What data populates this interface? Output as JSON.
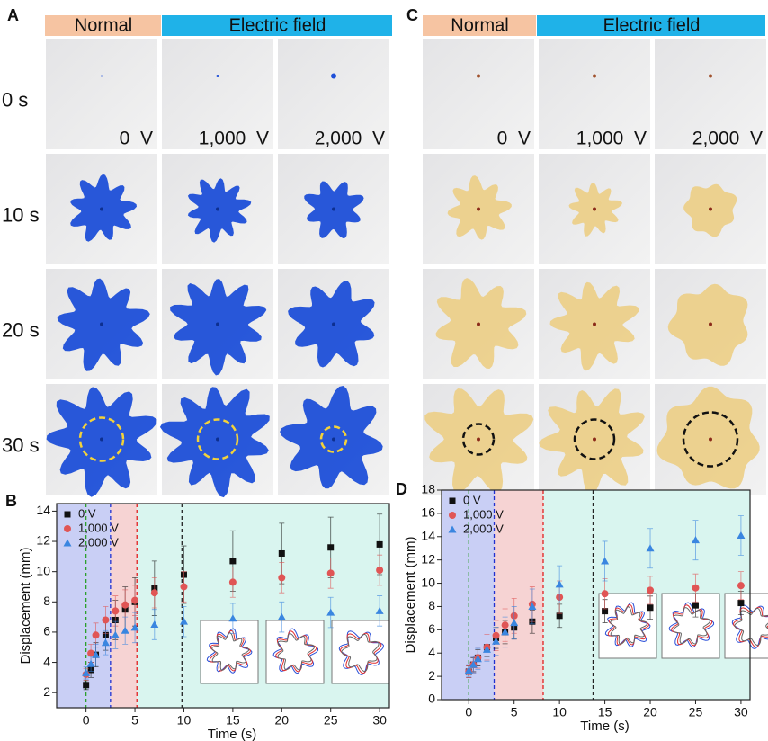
{
  "image_panels": [
    {
      "panel_label": "A",
      "headers": [
        "Normal",
        "Electric field"
      ],
      "times": [
        "0 s",
        "10 s",
        "20 s",
        "30 s"
      ],
      "voltages": [
        "0  V",
        "1,000  V",
        "2,000  V"
      ],
      "color": "#1d4fd8",
      "circle_color": "#f3d23a"
    },
    {
      "panel_label": "C",
      "headers": [
        "Normal",
        "Electric field"
      ],
      "voltages": [
        "0  V",
        "1,000  V",
        "2,000  V"
      ],
      "color": "#ecd08a",
      "circle_color": "#111111"
    }
  ],
  "chart_data": [
    {
      "type": "scatter",
      "panel_label": "B",
      "xlabel": "Time (s)",
      "ylabel": "Displacement (mm)",
      "xlim": [
        -3,
        31
      ],
      "ylim": [
        1,
        14.5
      ],
      "xticks": [
        0,
        5,
        10,
        15,
        20,
        25,
        30
      ],
      "yticks": [
        2,
        4,
        6,
        8,
        10,
        12,
        14
      ],
      "x": [
        0,
        0.5,
        1,
        2,
        3,
        4,
        5,
        7,
        10,
        15,
        20,
        25,
        30
      ],
      "bands": [
        {
          "x0": -3,
          "x1": 2.5,
          "color": "#c9cff5"
        },
        {
          "x0": 2.5,
          "x1": 5.2,
          "color": "#f6d3d3"
        },
        {
          "x0": 5.2,
          "x1": 31,
          "color": "#d9f5ef"
        }
      ],
      "vlines": [
        {
          "x": 0,
          "color": "#2ca02c"
        },
        {
          "x": 2.5,
          "color": "#2030d0"
        },
        {
          "x": 5.2,
          "color": "#e02020"
        },
        {
          "x": 9.8,
          "color": "#222222"
        }
      ],
      "series": [
        {
          "name": "0 V",
          "color": "#111111",
          "marker": "square",
          "values": [
            2.5,
            3.5,
            4.5,
            5.8,
            6.8,
            7.5,
            8,
            8.9,
            9.8,
            10.7,
            11.2,
            11.6,
            11.8
          ],
          "errors": [
            0.3,
            0.5,
            0.8,
            1.0,
            1.3,
            1.5,
            1.6,
            1.8,
            1.9,
            2.0,
            2.0,
            2.0,
            2.0
          ]
        },
        {
          "name": "1,000 V",
          "color": "#e05555",
          "marker": "circle",
          "values": [
            3.2,
            4.6,
            5.8,
            6.8,
            7.4,
            7.8,
            8.1,
            8.6,
            9,
            9.3,
            9.6,
            9.9,
            10.1
          ],
          "errors": [
            0.4,
            0.6,
            0.8,
            0.9,
            1.0,
            1.0,
            1.0,
            1.0,
            1.0,
            1.0,
            1.0,
            1.0,
            1.0
          ]
        },
        {
          "name": "2,000 V",
          "color": "#3a86e0",
          "marker": "triangle",
          "values": [
            3.3,
            3.9,
            4.5,
            5.3,
            5.8,
            6.1,
            6.3,
            6.5,
            6.7,
            6.9,
            7,
            7.3,
            7.4
          ],
          "errors": [
            0.4,
            0.5,
            0.7,
            0.8,
            0.9,
            0.9,
            1.0,
            1.0,
            1.0,
            1.0,
            1.0,
            1.0,
            1.0
          ]
        }
      ]
    },
    {
      "type": "scatter",
      "panel_label": "D",
      "xlabel": "Time (s)",
      "ylabel": "Displacement (mm)",
      "xlim": [
        -3,
        31
      ],
      "ylim": [
        0,
        18
      ],
      "xticks": [
        0,
        5,
        10,
        15,
        20,
        25,
        30
      ],
      "yticks": [
        0,
        2,
        4,
        6,
        8,
        10,
        12,
        14,
        16,
        18
      ],
      "x": [
        0,
        0.5,
        1,
        2,
        3,
        4,
        5,
        7,
        10,
        15,
        20,
        25,
        30
      ],
      "bands": [
        {
          "x0": -3,
          "x1": 2.8,
          "color": "#c9cff5"
        },
        {
          "x0": 2.8,
          "x1": 8.2,
          "color": "#f6d3d3"
        },
        {
          "x0": 8.2,
          "x1": 31,
          "color": "#d9f5ef"
        }
      ],
      "vlines": [
        {
          "x": 0,
          "color": "#2ca02c"
        },
        {
          "x": 2.8,
          "color": "#2030d0"
        },
        {
          "x": 8.2,
          "color": "#e02020"
        },
        {
          "x": 13.7,
          "color": "#222222"
        }
      ],
      "series": [
        {
          "name": "0 V",
          "color": "#111111",
          "marker": "square",
          "values": [
            2.4,
            3,
            3.6,
            4.5,
            5.3,
            5.8,
            6.2,
            6.7,
            7.2,
            7.6,
            7.9,
            8.1,
            8.3
          ],
          "errors": [
            0.5,
            0.6,
            0.7,
            0.8,
            0.9,
            1.0,
            1.0,
            1.0,
            1.0,
            1.0,
            1.0,
            1.0,
            1.0
          ]
        },
        {
          "name": "1,000 V",
          "color": "#e05555",
          "marker": "circle",
          "values": [
            2.4,
            3,
            3.6,
            4.5,
            5.5,
            6.4,
            7.2,
            8.2,
            8.8,
            9.1,
            9.4,
            9.6,
            9.8
          ],
          "errors": [
            0.5,
            0.7,
            0.9,
            1.1,
            1.3,
            1.4,
            1.5,
            1.5,
            1.4,
            1.3,
            1.2,
            1.2,
            1.2
          ]
        },
        {
          "name": "2,000 V",
          "color": "#3a86e0",
          "marker": "triangle",
          "values": [
            2.5,
            3,
            3.5,
            4.3,
            5,
            5.8,
            6.6,
            8,
            9.9,
            11.9,
            13,
            13.7,
            14.1
          ],
          "errors": [
            0.5,
            0.7,
            0.9,
            1.0,
            1.2,
            1.3,
            1.4,
            1.5,
            1.6,
            1.7,
            1.7,
            1.7,
            1.7
          ]
        }
      ]
    }
  ]
}
